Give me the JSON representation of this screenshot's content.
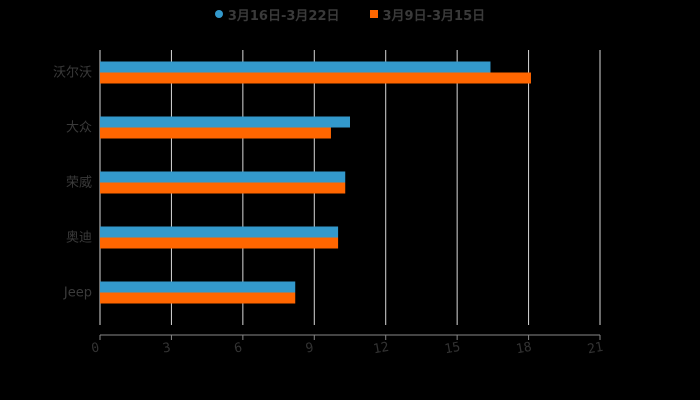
{
  "chart_data": {
    "type": "bar",
    "orientation": "horizontal",
    "title": "",
    "xlabel": "",
    "ylabel": "",
    "categories": [
      "沃尔沃",
      "大众",
      "荣威",
      "奥迪",
      "Jeep"
    ],
    "series": [
      {
        "name": "3月16日-3月22日",
        "color": "#3399cc",
        "values": [
          16.4,
          10.5,
          10.3,
          10.0,
          8.2
        ]
      },
      {
        "name": "3月9日-3月15日",
        "color": "#ff6600",
        "values": [
          18.1,
          9.7,
          10.3,
          10.0,
          8.2
        ]
      }
    ],
    "xlim": [
      0,
      21
    ],
    "xticks": [
      0,
      3,
      6,
      9,
      12,
      15,
      18,
      21
    ],
    "grid": true,
    "legend_position": "top"
  },
  "legend": {
    "items": [
      {
        "label": "3月16日-3月22日",
        "color": "#3399cc",
        "marker": "circle"
      },
      {
        "label": "3月9日-3月15日",
        "color": "#ff6600",
        "marker": "square"
      }
    ]
  }
}
